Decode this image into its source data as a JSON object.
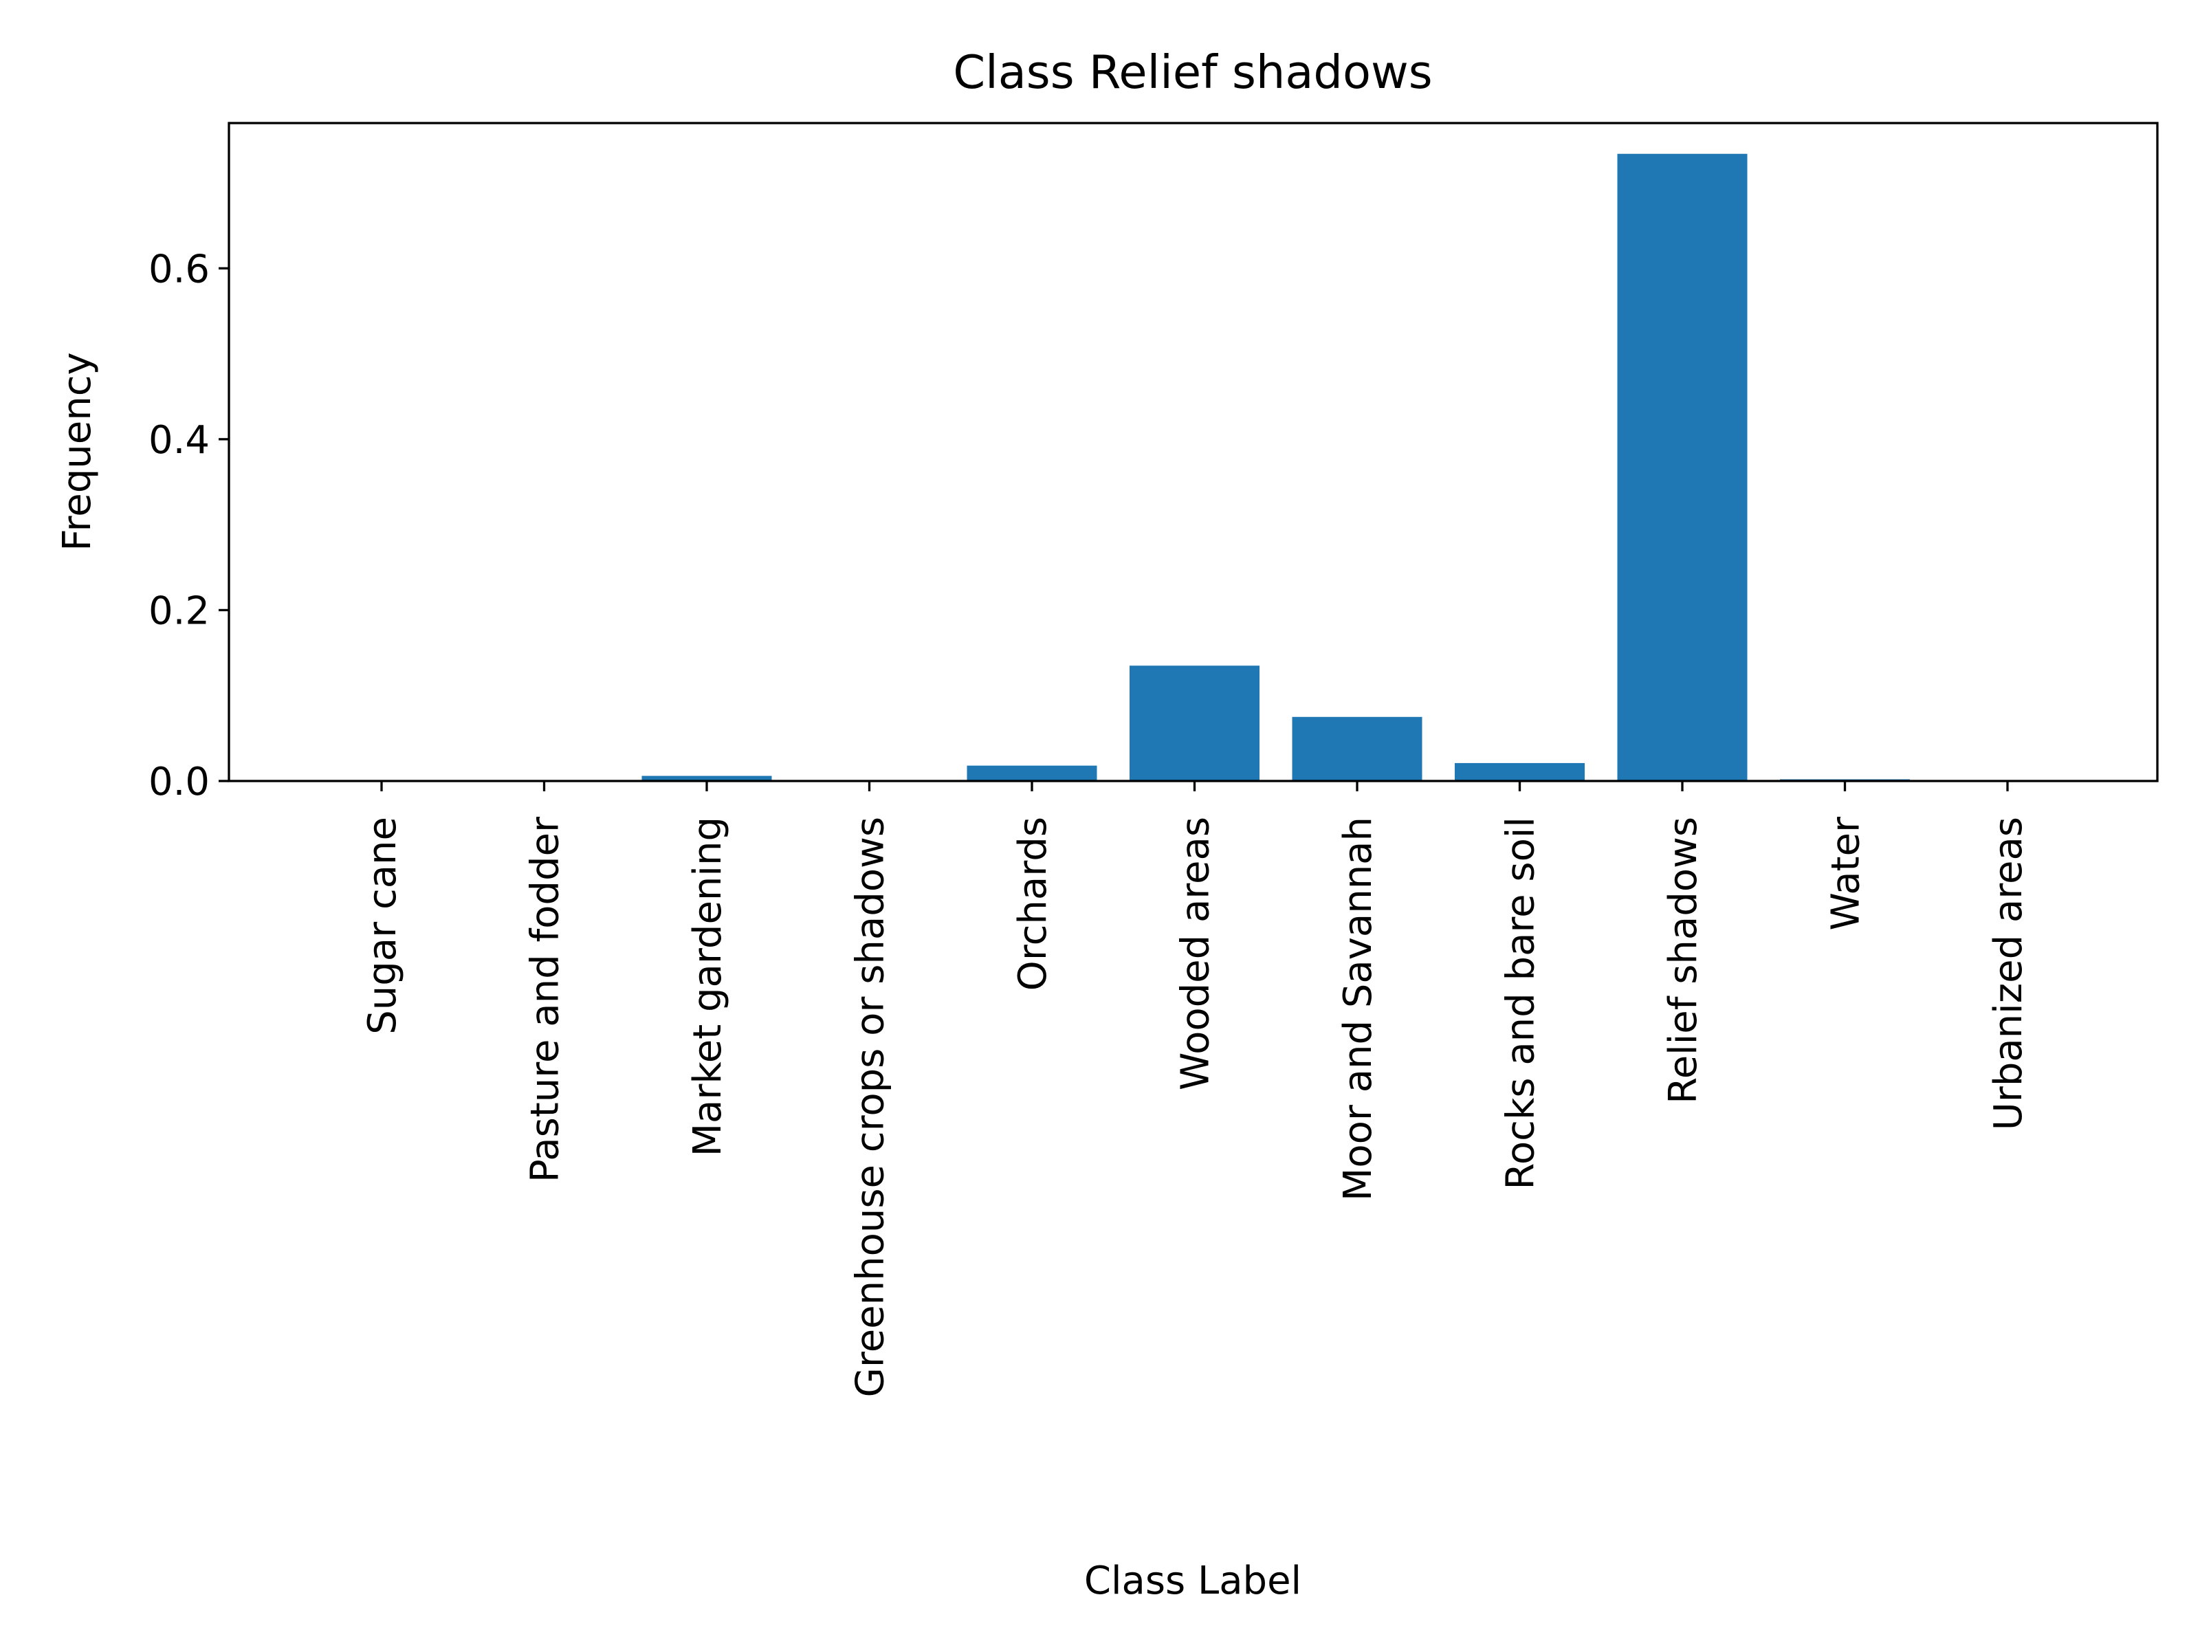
{
  "chart_data": {
    "type": "bar",
    "title": "Class Relief shadows",
    "xlabel": "Class Label",
    "ylabel": "Frequency",
    "ylim": [
      0,
      0.77
    ],
    "yticks": [
      "0.0",
      "0.2",
      "0.4",
      "0.6"
    ],
    "grid": false,
    "categories": [
      "Sugar cane",
      "Pasture and fodder",
      "Market gardening",
      "Greenhouse crops or shadows",
      "Orchards",
      "Wooded areas",
      "Moor and Savannah",
      "Rocks and bare soil",
      "Relief shadows",
      "Water",
      "Urbanized areas"
    ],
    "values": [
      0.0005,
      0.001,
      0.006,
      0.0005,
      0.018,
      0.135,
      0.075,
      0.021,
      0.734,
      0.002,
      0.0005
    ],
    "bar_color": "#1f77b4"
  }
}
